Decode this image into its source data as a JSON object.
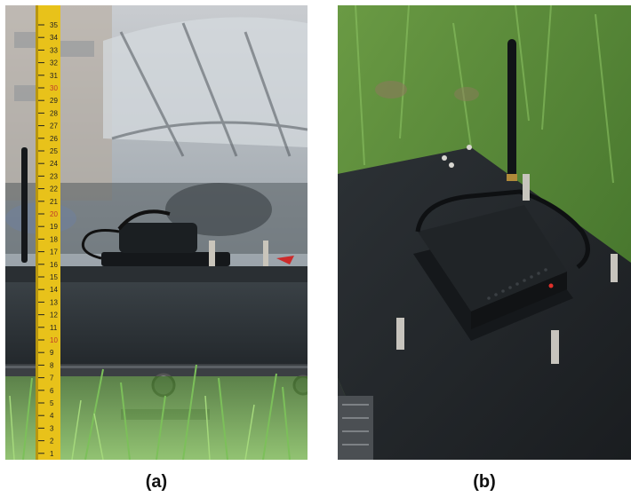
{
  "figure": {
    "panels": [
      {
        "id": "a",
        "caption": "(a)"
      },
      {
        "id": "b",
        "caption": "(b)"
      }
    ],
    "ruler_ticks": [
      "35",
      "34",
      "33",
      "32",
      "31",
      "30",
      "29",
      "28",
      "27",
      "26",
      "25",
      "24",
      "23",
      "22",
      "21",
      "20",
      "19",
      "18",
      "17",
      "16",
      "15",
      "14",
      "13",
      "12",
      "11",
      "10",
      "9",
      "8",
      "7",
      "6",
      "5",
      "4",
      "3",
      "2",
      "1"
    ],
    "colors": {
      "ruler_yellow": "#e8c21a",
      "ruler_red_marks": "#c0392b",
      "platform_black": "#1f2327",
      "grass_green": "#5f9a3a"
    }
  }
}
